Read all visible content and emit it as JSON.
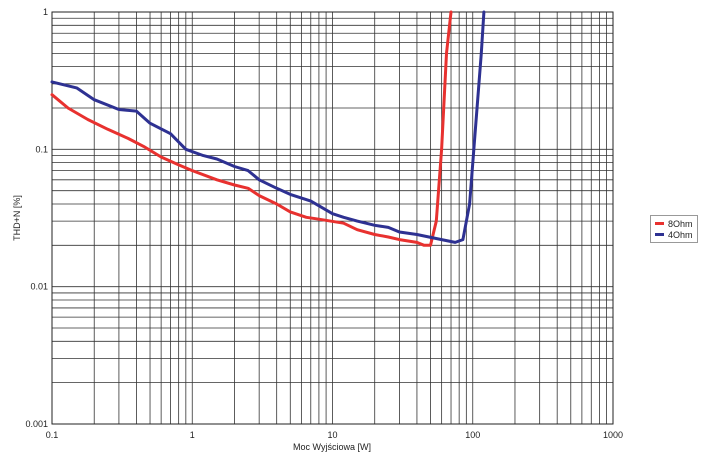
{
  "chart_data": {
    "type": "line",
    "xlabel": "Moc Wyjściowa [W]",
    "ylabel": "THD+N [%]",
    "xscale": "log",
    "yscale": "log",
    "xlim": [
      0.1,
      1000
    ],
    "ylim": [
      0.001,
      1
    ],
    "xticks": [
      "0.1",
      "1",
      "10",
      "100",
      "1000"
    ],
    "yticks": [
      "0.001",
      "0.01",
      "0.1",
      "1"
    ],
    "grid": true,
    "legend_position": "right",
    "series": [
      {
        "name": "8Ohm",
        "color": "#e8312f",
        "x": [
          0.1,
          0.13,
          0.18,
          0.25,
          0.35,
          0.45,
          0.6,
          0.8,
          1.0,
          1.5,
          2.0,
          2.5,
          3.0,
          4.0,
          5.0,
          6.5,
          8.0,
          12.0,
          15.0,
          20.0,
          25.0,
          30.0,
          40.0,
          45.0,
          50.0,
          55.0,
          60.0,
          65.0,
          70.0
        ],
        "y": [
          0.25,
          0.2,
          0.165,
          0.14,
          0.12,
          0.105,
          0.088,
          0.077,
          0.07,
          0.06,
          0.055,
          0.052,
          0.046,
          0.04,
          0.035,
          0.032,
          0.031,
          0.029,
          0.026,
          0.024,
          0.023,
          0.022,
          0.021,
          0.02,
          0.02,
          0.03,
          0.1,
          0.5,
          1.0
        ]
      },
      {
        "name": "4Ohm",
        "color": "#2e3192",
        "x": [
          0.1,
          0.15,
          0.2,
          0.3,
          0.4,
          0.5,
          0.7,
          0.9,
          1.2,
          1.5,
          2.0,
          2.5,
          3.0,
          4.0,
          5.0,
          7.0,
          10.0,
          12.0,
          15.0,
          20.0,
          25.0,
          30.0,
          40.0,
          60.0,
          75.0,
          85.0,
          95.0,
          105.0,
          115.0,
          120.0
        ],
        "y": [
          0.31,
          0.28,
          0.23,
          0.195,
          0.19,
          0.155,
          0.13,
          0.1,
          0.09,
          0.085,
          0.075,
          0.07,
          0.06,
          0.052,
          0.047,
          0.042,
          0.034,
          0.032,
          0.03,
          0.028,
          0.027,
          0.025,
          0.024,
          0.022,
          0.021,
          0.022,
          0.04,
          0.15,
          0.5,
          1.0
        ]
      }
    ]
  }
}
